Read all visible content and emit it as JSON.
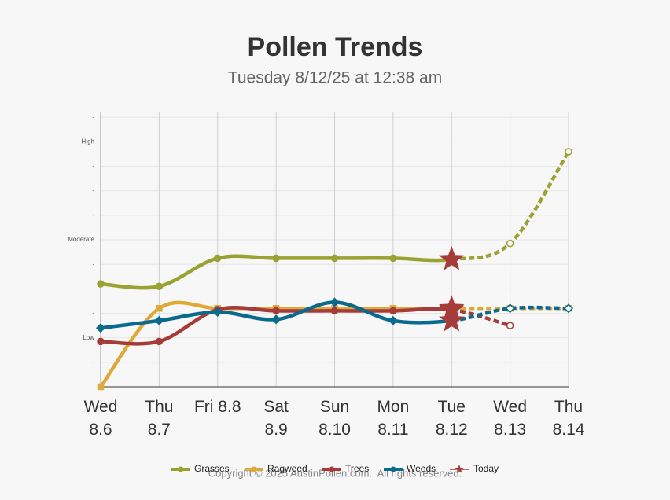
{
  "chart_data": {
    "type": "line",
    "title": "Pollen Trends",
    "subtitle": "Tuesday 8/12/25 at 12:38 am",
    "categories": [
      "Wed 8.6",
      "Thu 8.7",
      "Fri 8.8",
      "Sat 8.9",
      "Sun 8.10",
      "Mon 8.11",
      "Tue 8.12",
      "Wed 8.13",
      "Thu 8.14"
    ],
    "series": [
      {
        "name": "Grasses",
        "color": "#9aa232",
        "values": [
          4.2,
          4.1,
          5.25,
          5.25,
          5.25,
          5.25,
          5.2,
          5.85,
          9.6
        ]
      },
      {
        "name": "Ragweed",
        "color": "#dfa93a",
        "values": [
          0,
          3.2,
          3.2,
          3.2,
          3.2,
          3.2,
          3.2,
          3.2,
          3.2
        ]
      },
      {
        "name": "Trees",
        "color": "#a53c3a",
        "values": [
          1.85,
          1.85,
          3.15,
          3.1,
          3.1,
          3.1,
          3.15,
          2.5,
          null
        ]
      },
      {
        "name": "Weeds",
        "color": "#0a6a8d",
        "values": [
          2.4,
          2.7,
          3.05,
          2.75,
          3.45,
          2.7,
          2.7,
          3.2,
          3.2
        ]
      }
    ],
    "today": {
      "name": "Today",
      "color": "#a53c3a",
      "index": 6
    },
    "ylim": [
      0,
      11.2
    ],
    "yticks": [
      {
        "value": 1,
        "label": "-"
      },
      {
        "value": 2,
        "label": "Low"
      },
      {
        "value": 3,
        "label": "-"
      },
      {
        "value": 4,
        "label": "-"
      },
      {
        "value": 5,
        "label": "-"
      },
      {
        "value": 6,
        "label": "Moderate"
      },
      {
        "value": 7,
        "label": "-"
      },
      {
        "value": 8,
        "label": "-"
      },
      {
        "value": 9,
        "label": "-"
      },
      {
        "value": 10,
        "label": "High"
      },
      {
        "value": 11,
        "label": "-"
      }
    ],
    "grid": true,
    "copyright": "Copyright © 2025 AustinPollen.com.  All rights reserved."
  }
}
